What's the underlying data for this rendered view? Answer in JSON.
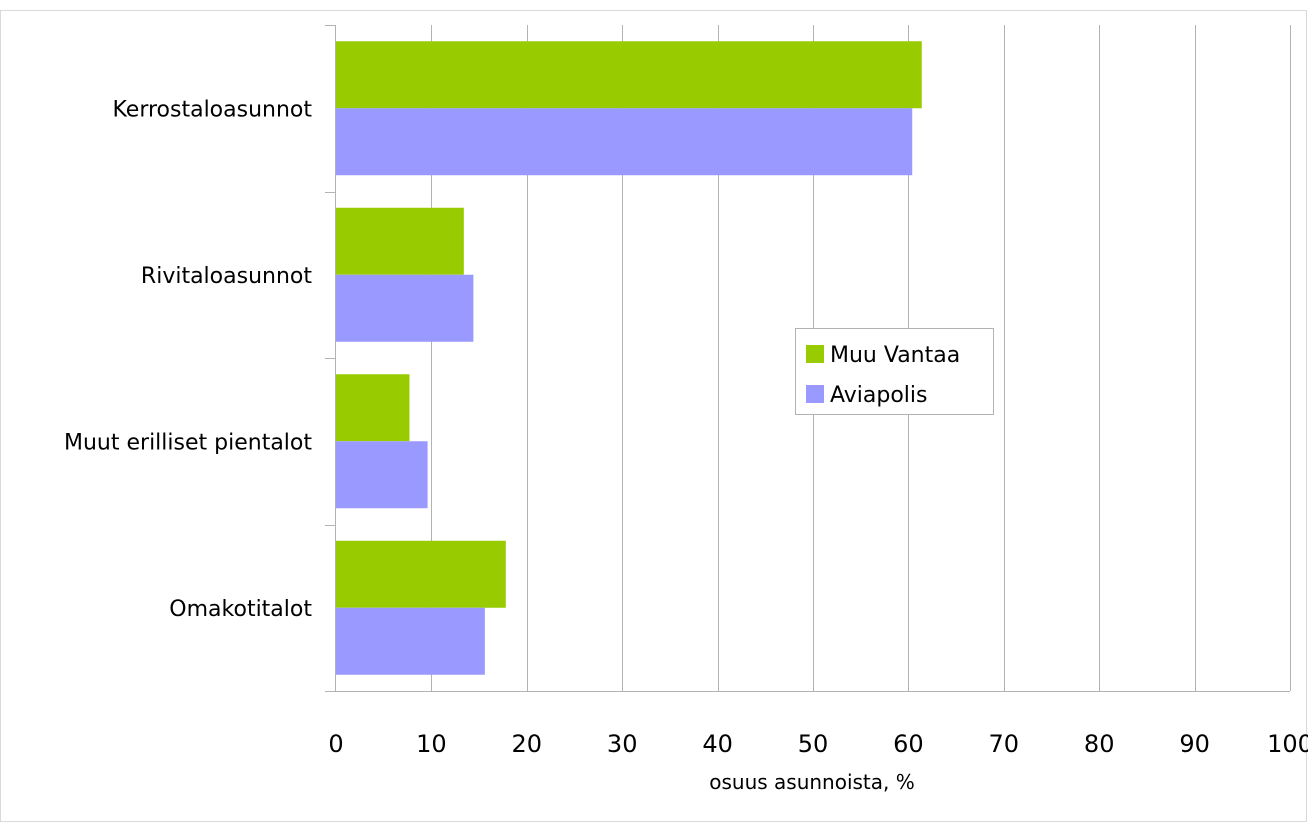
{
  "chart_data": {
    "type": "bar",
    "orientation": "horizontal",
    "categories": [
      "Omakotitalot",
      "Muut erilliset pientalot",
      "Rivitaloasunnot",
      "Kerrostaloasunnot"
    ],
    "series": [
      {
        "name": "Muu Vantaa",
        "color": "#99cc00",
        "values": [
          17.8,
          7.7,
          13.4,
          61.4
        ]
      },
      {
        "name": "Aviapolis",
        "color": "#9999ff",
        "values": [
          15.6,
          9.6,
          14.4,
          60.4
        ]
      }
    ],
    "x_ticks": [
      "0",
      "10",
      "20",
      "30",
      "40",
      "50",
      "60",
      "70",
      "80",
      "90",
      "100"
    ],
    "xlim": [
      0,
      100
    ],
    "xlabel": "osuus asunnoista, %",
    "ylabel": "",
    "title": "",
    "grid": true,
    "legend_position": "center-right",
    "colors": {
      "grid": "#b3b3b3",
      "axis": "#b3b3b3",
      "frame": "#d9d9d9"
    }
  }
}
